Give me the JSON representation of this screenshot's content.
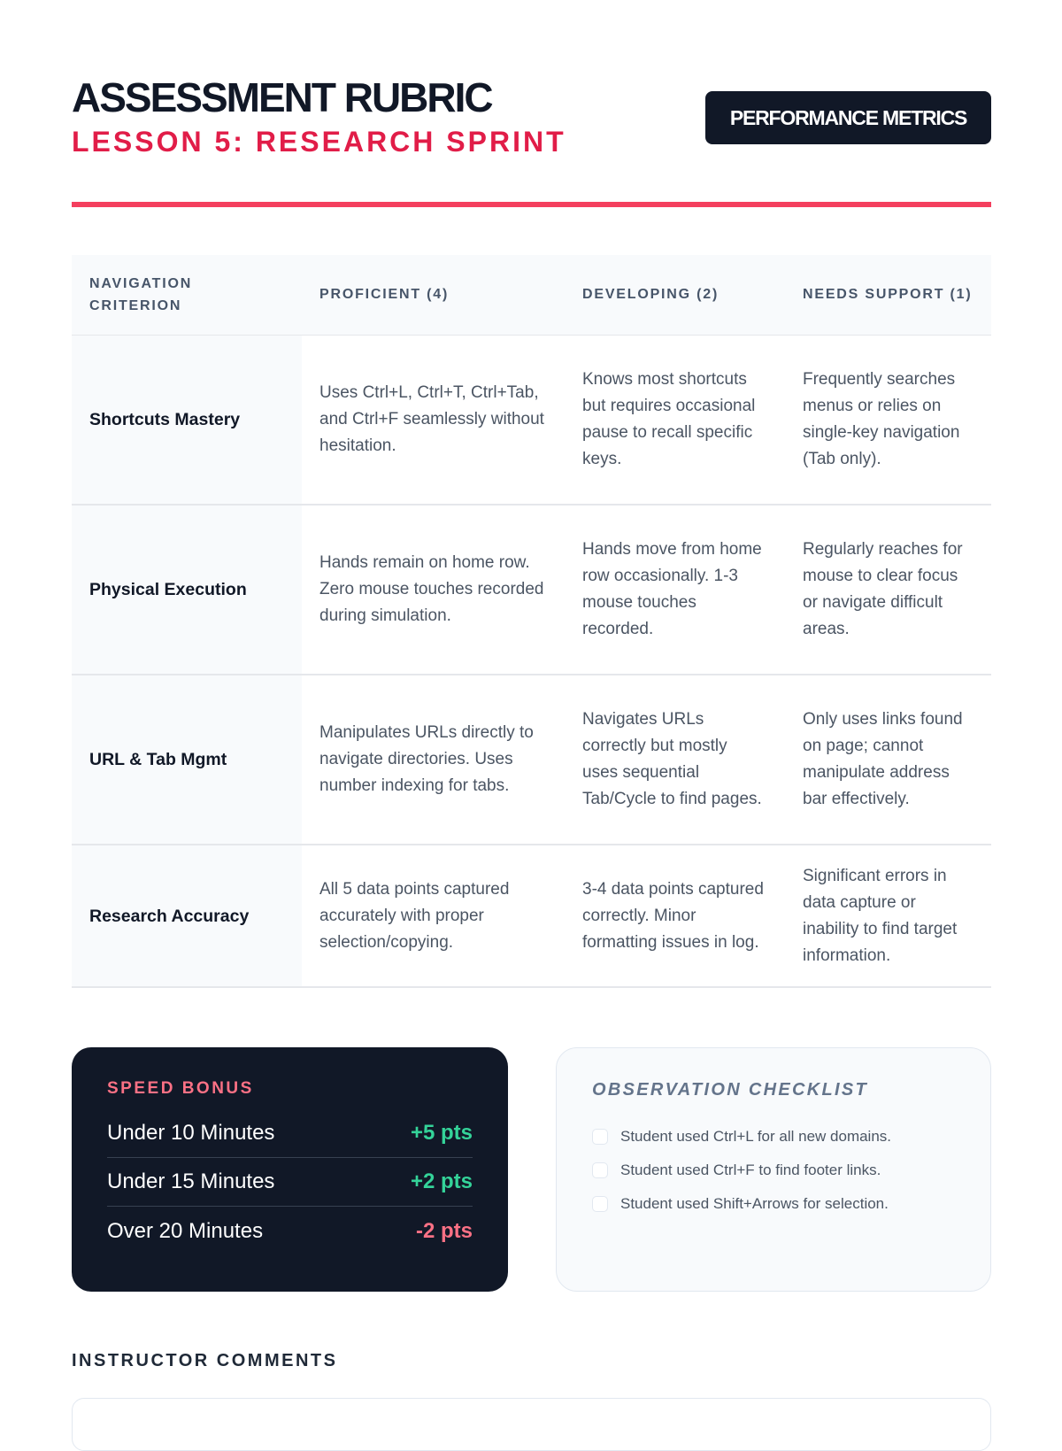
{
  "header": {
    "title": "ASSESSMENT RUBRIC",
    "subtitle": "LESSON 5: RESEARCH SPRINT",
    "badge": "PERFORMANCE METRICS"
  },
  "table": {
    "headers": [
      "NAVIGATION CRITERION",
      "PROFICIENT (4)",
      "DEVELOPING (2)",
      "NEEDS SUPPORT (1)"
    ],
    "rows": [
      [
        "Shortcuts Mastery",
        "Uses Ctrl+L, Ctrl+T, Ctrl+Tab, and Ctrl+F seamlessly without hesitation.",
        "Knows most shortcuts but requires occasional pause to recall specific keys.",
        "Frequently searches menus or relies on single-key navigation (Tab only)."
      ],
      [
        "Physical Execution",
        "Hands remain on home row. Zero mouse touches recorded during simulation.",
        "Hands move from home row occasionally. 1-3 mouse touches recorded.",
        "Regularly reaches for mouse to clear focus or navigate difficult areas."
      ],
      [
        "URL & Tab Mgmt",
        "Manipulates URLs directly to navigate directories. Uses number indexing for tabs.",
        "Navigates URLs correctly but mostly uses sequential Tab/Cycle to find pages.",
        "Only uses links found on page; cannot manipulate address bar effectively."
      ],
      [
        "Research Accuracy",
        "All 5 data points captured accurately with proper selection/copying.",
        "3-4 data points captured correctly. Minor formatting issues in log.",
        "Significant errors in data capture or inability to find target information."
      ]
    ]
  },
  "speed_bonus": {
    "title": "SPEED BONUS",
    "items": [
      {
        "label": "Under 10 Minutes",
        "points": "+5 pts"
      },
      {
        "label": "Under 15 Minutes",
        "points": "+2 pts"
      },
      {
        "label": "Over 20 Minutes",
        "points": "-2 pts"
      }
    ]
  },
  "checklist": {
    "title": "OBSERVATION CHECKLIST",
    "items": [
      {
        "label": "Student used Ctrl+L for all new domains.",
        "checked": false
      },
      {
        "label": "Student used Ctrl+F to find footer links.",
        "checked": false
      },
      {
        "label": "Student used Shift+Arrows for selection.",
        "checked": false
      }
    ]
  },
  "comments": {
    "label": "INSTRUCTOR COMMENTS",
    "value": ""
  },
  "colors": {
    "accent": "#f43f5e",
    "dark": "#111827",
    "positive": "#34d399",
    "negative": "#fb7185"
  }
}
